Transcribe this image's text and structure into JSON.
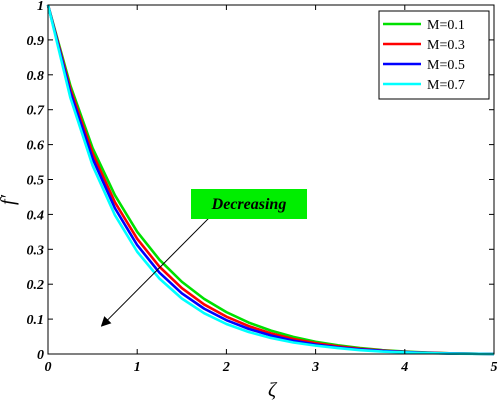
{
  "chart_data": {
    "type": "line",
    "xlabel": "ζ",
    "ylabel": "f′",
    "xlim": [
      0,
      5
    ],
    "ylim": [
      0,
      1
    ],
    "x_ticks": [
      "0",
      "1",
      "2",
      "3",
      "4",
      "5"
    ],
    "y_ticks": [
      "0",
      "0.1",
      "0.2",
      "0.3",
      "0.4",
      "0.5",
      "0.6",
      "0.7",
      "0.8",
      "0.9",
      "1"
    ],
    "grid": false,
    "legend_position": "top-right",
    "x": [
      0,
      0.25,
      0.5,
      0.75,
      1,
      1.25,
      1.5,
      1.75,
      2,
      2.25,
      2.5,
      2.75,
      3,
      3.25,
      3.5,
      3.75,
      4,
      4.25,
      4.5,
      4.75,
      5
    ],
    "series": [
      {
        "name": "M=0.1",
        "color": "#00e000",
        "values": [
          1,
          0.77,
          0.59,
          0.455,
          0.35,
          0.27,
          0.207,
          0.158,
          0.12,
          0.09,
          0.067,
          0.049,
          0.035,
          0.025,
          0.017,
          0.011,
          0.007,
          0.004,
          0.002,
          0.001,
          0
        ]
      },
      {
        "name": "M=0.3",
        "color": "#ff0000",
        "values": [
          1,
          0.76,
          0.575,
          0.435,
          0.33,
          0.25,
          0.189,
          0.142,
          0.107,
          0.08,
          0.059,
          0.043,
          0.031,
          0.022,
          0.015,
          0.01,
          0.006,
          0.0035,
          0.002,
          0.001,
          0
        ]
      },
      {
        "name": "M=0.5",
        "color": "#0000ff",
        "values": [
          1,
          0.75,
          0.56,
          0.418,
          0.312,
          0.233,
          0.174,
          0.13,
          0.097,
          0.072,
          0.053,
          0.038,
          0.027,
          0.019,
          0.013,
          0.009,
          0.0055,
          0.003,
          0.0015,
          0.0008,
          0
        ]
      },
      {
        "name": "M=0.7",
        "color": "#00ffff",
        "values": [
          1,
          0.735,
          0.54,
          0.398,
          0.293,
          0.216,
          0.159,
          0.117,
          0.086,
          0.063,
          0.046,
          0.033,
          0.024,
          0.017,
          0.011,
          0.007,
          0.0045,
          0.0025,
          0.0012,
          0.0005,
          0
        ]
      }
    ],
    "annotation": {
      "text": "Decreasing",
      "background": "#00ee00",
      "arrow_from": [
        2.0,
        0.44
      ],
      "arrow_to": [
        0.6,
        0.08
      ]
    }
  }
}
